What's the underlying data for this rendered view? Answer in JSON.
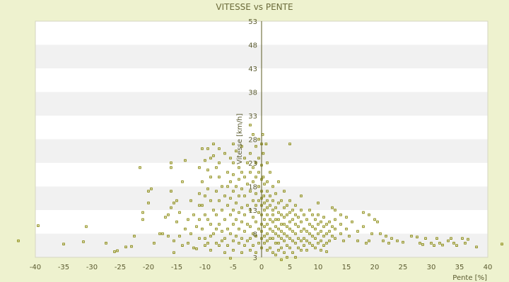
{
  "chart_data": {
    "type": "scatter",
    "title": "VITESSE vs PENTE",
    "xlabel": "Pente [%]",
    "ylabel": "Vitesse [km/h]",
    "xlim": [
      -40,
      40
    ],
    "ylim": [
      3,
      53
    ],
    "xticks": [
      "-40",
      "-35",
      "-30",
      "-25",
      "-20",
      "-15",
      "-10",
      "-5",
      "0",
      "5",
      "10",
      "15",
      "20",
      "25",
      "30",
      "35",
      "40"
    ],
    "yticks": [
      "53",
      "48",
      "43",
      "38",
      "33",
      "28",
      "23",
      "18",
      "13",
      "8",
      "3"
    ],
    "grid": true,
    "colors": {
      "background": "#eef2cf",
      "band_light": "#ffffff",
      "band_dark": "#f1f1f1",
      "axis": "#5b5b22",
      "marker": "#8a8a10",
      "text": "#5b5b30"
    },
    "points": [
      [
        -39.5,
        9.7
      ],
      [
        -43,
        6.5
      ],
      [
        -35,
        5.8
      ],
      [
        -31,
        9.5
      ],
      [
        -31.5,
        6.3
      ],
      [
        -27.5,
        6
      ],
      [
        -26,
        4.2
      ],
      [
        -25.5,
        4.4
      ],
      [
        -24,
        5.2
      ],
      [
        -23,
        5.3
      ],
      [
        -22.5,
        7.5
      ],
      [
        -21,
        11
      ],
      [
        -21,
        12.5
      ],
      [
        -21.5,
        22
      ],
      [
        -20,
        14.5
      ],
      [
        -20,
        17
      ],
      [
        -19.5,
        17.5
      ],
      [
        -19,
        6
      ],
      [
        -18,
        8
      ],
      [
        -17.5,
        8
      ],
      [
        -17,
        11.5
      ],
      [
        -16.5,
        7.5
      ],
      [
        -16.5,
        12
      ],
      [
        -16,
        13.5
      ],
      [
        -16,
        17
      ],
      [
        -16,
        22
      ],
      [
        -16,
        23
      ],
      [
        -15.5,
        14.5
      ],
      [
        -15.5,
        6.5
      ],
      [
        -15.5,
        4
      ],
      [
        -15,
        15
      ],
      [
        -15,
        10.5
      ],
      [
        -14.5,
        7.5
      ],
      [
        -14.5,
        12.5
      ],
      [
        -14,
        19
      ],
      [
        -14,
        5.5
      ],
      [
        -13.5,
        9
      ],
      [
        -13.5,
        23.5
      ],
      [
        -13,
        11
      ],
      [
        -13,
        6
      ],
      [
        -12.5,
        8
      ],
      [
        -12.5,
        15
      ],
      [
        -12,
        12
      ],
      [
        -12,
        5
      ],
      [
        -11.5,
        9.5
      ],
      [
        -11.5,
        4.8
      ],
      [
        -11,
        22
      ],
      [
        -11,
        16.5
      ],
      [
        -11,
        14
      ],
      [
        -11,
        11
      ],
      [
        -11,
        7
      ],
      [
        -10.5,
        26
      ],
      [
        -10.5,
        19
      ],
      [
        -10.5,
        14
      ],
      [
        -10.5,
        9
      ],
      [
        -10,
        23.5
      ],
      [
        -10,
        16
      ],
      [
        -10,
        12
      ],
      [
        -10,
        7
      ],
      [
        -10,
        5.5
      ],
      [
        -9.5,
        26
      ],
      [
        -9.5,
        21.5
      ],
      [
        -9.5,
        17.5
      ],
      [
        -9.5,
        11
      ],
      [
        -9.5,
        6
      ],
      [
        -9,
        24
      ],
      [
        -9,
        20
      ],
      [
        -9,
        15
      ],
      [
        -9,
        10
      ],
      [
        -9,
        7.5
      ],
      [
        -9,
        4.5
      ],
      [
        -8.5,
        27
      ],
      [
        -8.5,
        24.5
      ],
      [
        -8.5,
        13
      ],
      [
        -8.5,
        8
      ],
      [
        -8,
        22
      ],
      [
        -8,
        17
      ],
      [
        -8,
        12
      ],
      [
        -8,
        9
      ],
      [
        -8,
        6
      ],
      [
        -7.5,
        26
      ],
      [
        -7.5,
        23
      ],
      [
        -7.5,
        20
      ],
      [
        -7.5,
        15
      ],
      [
        -7.5,
        10
      ],
      [
        -7.5,
        5.5
      ],
      [
        -7,
        18
      ],
      [
        -7,
        13
      ],
      [
        -7,
        8.5
      ],
      [
        -7,
        6.5
      ],
      [
        -6.5,
        25
      ],
      [
        -6.5,
        16
      ],
      [
        -6.5,
        11
      ],
      [
        -6.5,
        7
      ],
      [
        -6.5,
        4
      ],
      [
        -6,
        21
      ],
      [
        -6,
        18
      ],
      [
        -6,
        14
      ],
      [
        -6,
        9
      ],
      [
        -6,
        5.5
      ],
      [
        -5.5,
        24
      ],
      [
        -5.5,
        19
      ],
      [
        -5.5,
        15.5
      ],
      [
        -5.5,
        12
      ],
      [
        -5.5,
        8
      ],
      [
        -5.5,
        2.8
      ],
      [
        -5,
        27
      ],
      [
        -5,
        23
      ],
      [
        -5,
        20.5
      ],
      [
        -5,
        17
      ],
      [
        -5,
        13
      ],
      [
        -5,
        10
      ],
      [
        -5,
        6.5
      ],
      [
        -5,
        4.5
      ],
      [
        -4.5,
        25.5
      ],
      [
        -4.5,
        18
      ],
      [
        -4.5,
        14.5
      ],
      [
        -4.5,
        11
      ],
      [
        -4.5,
        7.5
      ],
      [
        -4,
        22
      ],
      [
        -4,
        19.5
      ],
      [
        -4,
        16
      ],
      [
        -4,
        12.5
      ],
      [
        -4,
        9
      ],
      [
        -4,
        6
      ],
      [
        -3.5,
        26.5
      ],
      [
        -3.5,
        21
      ],
      [
        -3.5,
        17.5
      ],
      [
        -3.5,
        13.5
      ],
      [
        -3.5,
        10.5
      ],
      [
        -3.5,
        7
      ],
      [
        -3.5,
        4
      ],
      [
        -3,
        24
      ],
      [
        -3,
        20
      ],
      [
        -3,
        16
      ],
      [
        -3,
        12
      ],
      [
        -3,
        8.5
      ],
      [
        -3,
        5.5
      ],
      [
        -2.5,
        23
      ],
      [
        -2.5,
        18.5
      ],
      [
        -2.5,
        14
      ],
      [
        -2.5,
        10
      ],
      [
        -2.5,
        6.5
      ],
      [
        -2,
        31
      ],
      [
        -2,
        25
      ],
      [
        -2,
        21
      ],
      [
        -2,
        17
      ],
      [
        -2,
        13
      ],
      [
        -2,
        9.5
      ],
      [
        -2,
        7
      ],
      [
        -2,
        4.5
      ],
      [
        -1.5,
        29
      ],
      [
        -1.5,
        22
      ],
      [
        -1.5,
        19
      ],
      [
        -1.5,
        15
      ],
      [
        -1.5,
        11.5
      ],
      [
        -1.5,
        8
      ],
      [
        -1.5,
        5.5
      ],
      [
        -1,
        26.5
      ],
      [
        -1,
        23
      ],
      [
        -1,
        20
      ],
      [
        -1,
        16.5
      ],
      [
        -1,
        14
      ],
      [
        -1,
        10.5
      ],
      [
        -1,
        7.5
      ],
      [
        -1,
        4
      ],
      [
        -0.5,
        28
      ],
      [
        -0.5,
        24
      ],
      [
        -0.5,
        21
      ],
      [
        -0.5,
        18
      ],
      [
        -0.5,
        15
      ],
      [
        -0.5,
        12.5
      ],
      [
        -0.5,
        9
      ],
      [
        -0.5,
        6
      ],
      [
        0,
        27
      ],
      [
        0,
        22.5
      ],
      [
        0,
        19.5
      ],
      [
        0,
        17
      ],
      [
        0,
        15.5
      ],
      [
        0,
        14
      ],
      [
        0,
        12
      ],
      [
        0,
        10
      ],
      [
        0,
        8.5
      ],
      [
        0,
        7
      ],
      [
        0,
        5
      ],
      [
        0.2,
        29
      ],
      [
        0.3,
        25
      ],
      [
        0.3,
        20
      ],
      [
        0.4,
        16
      ],
      [
        0.5,
        18.5
      ],
      [
        0.5,
        14.5
      ],
      [
        0.5,
        13
      ],
      [
        0.5,
        11
      ],
      [
        0.5,
        9.5
      ],
      [
        0.5,
        7.5
      ],
      [
        0.5,
        6
      ],
      [
        0.8,
        27
      ],
      [
        1,
        23
      ],
      [
        1,
        19
      ],
      [
        1,
        17
      ],
      [
        1,
        15
      ],
      [
        1,
        13.5
      ],
      [
        1,
        12
      ],
      [
        1,
        10
      ],
      [
        1,
        8
      ],
      [
        1,
        6.5
      ],
      [
        1,
        4.5
      ],
      [
        1.5,
        21
      ],
      [
        1.5,
        16
      ],
      [
        1.5,
        14
      ],
      [
        1.5,
        11
      ],
      [
        1.5,
        9
      ],
      [
        1.5,
        7
      ],
      [
        1.5,
        5
      ],
      [
        2,
        18
      ],
      [
        2,
        15
      ],
      [
        2,
        13
      ],
      [
        2,
        12
      ],
      [
        2,
        10.5
      ],
      [
        2,
        8.5
      ],
      [
        2,
        7
      ],
      [
        2,
        4
      ],
      [
        2.5,
        16.5
      ],
      [
        2.5,
        13.5
      ],
      [
        2.5,
        11
      ],
      [
        2.5,
        9.5
      ],
      [
        2.5,
        8
      ],
      [
        2.5,
        6
      ],
      [
        2.5,
        3.5
      ],
      [
        3,
        19
      ],
      [
        3,
        14.5
      ],
      [
        3,
        12.5
      ],
      [
        3,
        11
      ],
      [
        3,
        9
      ],
      [
        3,
        7.5
      ],
      [
        3,
        6
      ],
      [
        3,
        4.5
      ],
      [
        3.5,
        15
      ],
      [
        3.5,
        12
      ],
      [
        3.5,
        10
      ],
      [
        3.5,
        8.5
      ],
      [
        3.5,
        7
      ],
      [
        3.5,
        5
      ],
      [
        3.5,
        2.5
      ],
      [
        4,
        17
      ],
      [
        4,
        13.5
      ],
      [
        4,
        11.5
      ],
      [
        4,
        10
      ],
      [
        4,
        8
      ],
      [
        4,
        6.5
      ],
      [
        4,
        4
      ],
      [
        4.5,
        14
      ],
      [
        4.5,
        12
      ],
      [
        4.5,
        9.5
      ],
      [
        4.5,
        7.5
      ],
      [
        4.5,
        5.5
      ],
      [
        4.5,
        3
      ],
      [
        5,
        27
      ],
      [
        5,
        15
      ],
      [
        5,
        12.5
      ],
      [
        5,
        10.5
      ],
      [
        5,
        9
      ],
      [
        5,
        7
      ],
      [
        5,
        5
      ],
      [
        5.5,
        13
      ],
      [
        5.5,
        11
      ],
      [
        5.5,
        8.5
      ],
      [
        5.5,
        6.5
      ],
      [
        5.5,
        4
      ],
      [
        6,
        14
      ],
      [
        6,
        12
      ],
      [
        6,
        10
      ],
      [
        6,
        8
      ],
      [
        6,
        6
      ],
      [
        6,
        3
      ],
      [
        6.5,
        11.5
      ],
      [
        6.5,
        9.5
      ],
      [
        6.5,
        7
      ],
      [
        6.5,
        5
      ],
      [
        7,
        16
      ],
      [
        7,
        13
      ],
      [
        7,
        10.5
      ],
      [
        7,
        8.5
      ],
      [
        7,
        6.5
      ],
      [
        7,
        4.5
      ],
      [
        7.5,
        12
      ],
      [
        7.5,
        9
      ],
      [
        7.5,
        7
      ],
      [
        7.5,
        5.5
      ],
      [
        8,
        11
      ],
      [
        8,
        8.5
      ],
      [
        8,
        6.5
      ],
      [
        8,
        4.5
      ],
      [
        8.5,
        13
      ],
      [
        8.5,
        10
      ],
      [
        8.5,
        8
      ],
      [
        8.5,
        6
      ],
      [
        9,
        12
      ],
      [
        9,
        9.5
      ],
      [
        9,
        7.5
      ],
      [
        9,
        5.5
      ],
      [
        9.5,
        11
      ],
      [
        9.5,
        9
      ],
      [
        9.5,
        7
      ],
      [
        9.5,
        5
      ],
      [
        10,
        14.5
      ],
      [
        10,
        12
      ],
      [
        10,
        10
      ],
      [
        10,
        8
      ],
      [
        10,
        6
      ],
      [
        10.5,
        10.5
      ],
      [
        10.5,
        8.5
      ],
      [
        10.5,
        6.5
      ],
      [
        10.5,
        4.5
      ],
      [
        11,
        11.5
      ],
      [
        11,
        9.5
      ],
      [
        11,
        7.5
      ],
      [
        11,
        5.5
      ],
      [
        11.5,
        10
      ],
      [
        11.5,
        8
      ],
      [
        11.5,
        6
      ],
      [
        11.5,
        4.2
      ],
      [
        12,
        10.5
      ],
      [
        12,
        8.5
      ],
      [
        12,
        6.5
      ],
      [
        12.5,
        13.5
      ],
      [
        12.5,
        9.5
      ],
      [
        12.5,
        7.5
      ],
      [
        13,
        13
      ],
      [
        13,
        11
      ],
      [
        13,
        9
      ],
      [
        13,
        7
      ],
      [
        14,
        12
      ],
      [
        14,
        10
      ],
      [
        14,
        8
      ],
      [
        14.5,
        6.5
      ],
      [
        15,
        11.5
      ],
      [
        15,
        9
      ],
      [
        15.5,
        7.5
      ],
      [
        16,
        10.5
      ],
      [
        17,
        8.5
      ],
      [
        17,
        6.5
      ],
      [
        18,
        12.5
      ],
      [
        18,
        9.5
      ],
      [
        18.5,
        6
      ],
      [
        19,
        12
      ],
      [
        19,
        6.5
      ],
      [
        19.5,
        8
      ],
      [
        20,
        11
      ],
      [
        20.5,
        10.5
      ],
      [
        21,
        8
      ],
      [
        21.5,
        6.5
      ],
      [
        22,
        7.5
      ],
      [
        22.5,
        6
      ],
      [
        23,
        7
      ],
      [
        24,
        6.5
      ],
      [
        25,
        6.2
      ],
      [
        26.5,
        7.5
      ],
      [
        27.5,
        7.3
      ],
      [
        28,
        6
      ],
      [
        28.5,
        5.7
      ],
      [
        29,
        7
      ],
      [
        30,
        6
      ],
      [
        30.5,
        5.5
      ],
      [
        31,
        7
      ],
      [
        31.5,
        6
      ],
      [
        32,
        5.6
      ],
      [
        33,
        6.5
      ],
      [
        33.5,
        7
      ],
      [
        34,
        6
      ],
      [
        34.5,
        5.5
      ],
      [
        35.5,
        7
      ],
      [
        36,
        6
      ],
      [
        36.5,
        6.8
      ],
      [
        38,
        5.2
      ],
      [
        42.5,
        5.8
      ]
    ]
  }
}
